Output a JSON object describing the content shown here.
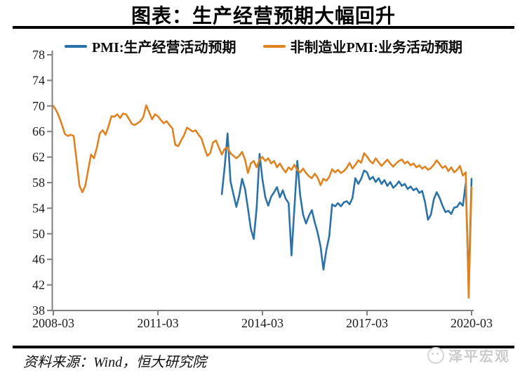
{
  "chart": {
    "title": "图表：生产经营预期大幅回升",
    "legend": [
      {
        "label": "PMI:生产经营活动预期",
        "color": "#2A72A8"
      },
      {
        "label": "非制造业PMI:业务活动预期",
        "color": "#E0821F"
      }
    ]
  },
  "chart_data": {
    "type": "line",
    "title": "图表：生产经营预期大幅回升",
    "xlabel": "",
    "ylabel": "",
    "x_unit": "month",
    "x_range": [
      "2008-03",
      "2020-03"
    ],
    "ylim": [
      38,
      78
    ],
    "yticks": [
      38,
      42,
      46,
      50,
      54,
      58,
      62,
      66,
      70,
      74,
      78
    ],
    "xticks": [
      {
        "label": "2008-03",
        "month_index": 0
      },
      {
        "label": "2011-03",
        "month_index": 36
      },
      {
        "label": "2014-03",
        "month_index": 72
      },
      {
        "label": "2017-03",
        "month_index": 108
      },
      {
        "label": "2020-03",
        "month_index": 144
      }
    ],
    "grid": false,
    "legend_position": "top",
    "axis_color": "#808080",
    "series": [
      {
        "name": "PMI:生产经营活动预期",
        "color": "#2A72A8",
        "start": "2013-01",
        "start_month_index": 58,
        "values": [
          56.2,
          60.5,
          65.7,
          58.2,
          56.2,
          54.2,
          56.0,
          58.6,
          57.0,
          54.0,
          50.8,
          49.2,
          54.0,
          62.5,
          58.5,
          55.7,
          54.4,
          55.8,
          56.5,
          57.3,
          55.7,
          56.8,
          55.5,
          54.8,
          46.6,
          54.0,
          61.4,
          56.0,
          53.0,
          51.6,
          52.8,
          53.7,
          51.8,
          50.2,
          48.0,
          44.4,
          47.5,
          49.6,
          54.6,
          54.3,
          54.8,
          54.3,
          54.9,
          55.1,
          54.6,
          55.6,
          58.7,
          57.8,
          58.6,
          59.9,
          59.6,
          58.5,
          58.9,
          58.1,
          58.7,
          57.8,
          58.4,
          57.5,
          58.1,
          57.2,
          57.6,
          58.2,
          57.5,
          57.8,
          57.0,
          57.4,
          56.8,
          57.1,
          56.4,
          56.7,
          54.9,
          52.2,
          53.0,
          55.4,
          56.5,
          55.6,
          54.4,
          53.4,
          53.6,
          53.1,
          54.1,
          54.2,
          54.9,
          54.4,
          57.9,
          41.8,
          58.6
        ]
      },
      {
        "name": "非制造业PMI:业务活动预期",
        "color": "#E0821F",
        "start": "2008-03",
        "start_month_index": 0,
        "values": [
          70.0,
          69.3,
          68.3,
          67.0,
          65.6,
          65.3,
          65.5,
          65.3,
          61.5,
          57.5,
          56.5,
          57.5,
          60.0,
          62.4,
          61.8,
          63.5,
          65.7,
          66.2,
          65.5,
          66.8,
          68.4,
          68.3,
          68.7,
          68.1,
          68.8,
          68.7,
          68.0,
          67.2,
          67.0,
          67.3,
          67.6,
          68.3,
          70.1,
          69.0,
          67.9,
          68.7,
          68.4,
          67.8,
          67.3,
          67.6,
          67.0,
          66.5,
          63.9,
          63.7,
          64.6,
          65.4,
          66.6,
          66.3,
          66.0,
          66.2,
          65.5,
          64.9,
          63.5,
          62.2,
          62.6,
          64.3,
          64.6,
          63.5,
          62.4,
          63.3,
          63.5,
          62.6,
          62.2,
          61.8,
          62.2,
          62.8,
          61.6,
          59.5,
          61.0,
          61.4,
          60.4,
          61.6,
          62.0,
          61.4,
          61.8,
          61.0,
          61.4,
          60.4,
          61.0,
          60.2,
          59.6,
          60.4,
          60.0,
          60.8,
          60.0,
          59.6,
          60.2,
          59.5,
          59.0,
          58.7,
          59.4,
          58.8,
          57.6,
          58.6,
          58.3,
          58.9,
          60.1,
          59.6,
          60.0,
          59.5,
          59.8,
          60.3,
          61.1,
          60.2,
          60.8,
          61.5,
          61.1,
          62.6,
          62.1,
          61.4,
          61.0,
          61.8,
          61.2,
          60.6,
          61.1,
          61.6,
          61.0,
          60.5,
          61.0,
          61.4,
          61.6,
          61.0,
          61.3,
          60.7,
          61.0,
          60.4,
          60.7,
          60.2,
          60.5,
          60.0,
          60.3,
          60.8,
          61.5,
          60.9,
          60.3,
          60.6,
          59.8,
          60.4,
          59.6,
          60.0,
          60.6,
          59.1,
          59.6,
          40.0,
          57.3
        ]
      }
    ]
  },
  "footer": {
    "source": "资料来源：Wind，恒大研究院",
    "watermark": "泽平宏观"
  }
}
